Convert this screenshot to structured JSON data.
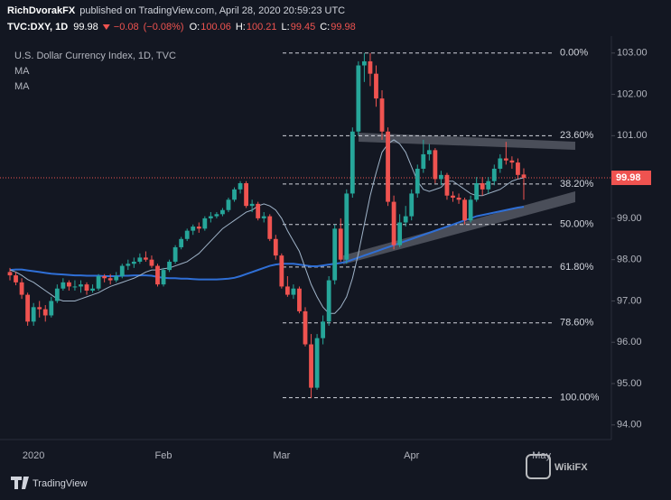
{
  "header": {
    "author": "RichDvorakFX",
    "published": "published on TradingView.com, April 28, 2020 20:59:23 UTC",
    "symbol": "TVC:DXY, 1D",
    "change": {
      "value": -0.08,
      "label": "−0.08"
    },
    "change_percent": {
      "value": -0.08,
      "label": "(−0.08%)"
    },
    "ohlc_prefixes": [
      "O:",
      "H:",
      "L:",
      "C:"
    ]
  },
  "footer": {
    "brand": "TradingView",
    "watermark": "WikiFX"
  },
  "chart_data": {
    "type": "candlestick",
    "categories": [
      null,
      null,
      null,
      null,
      "2020",
      null,
      null,
      null,
      null,
      null,
      null,
      null,
      null,
      null,
      null,
      null,
      null,
      null,
      null,
      null,
      null,
      null,
      null,
      null,
      null,
      null,
      "Feb",
      null,
      null,
      null,
      null,
      null,
      null,
      null,
      null,
      null,
      null,
      null,
      null,
      null,
      null,
      null,
      null,
      null,
      null,
      null,
      "Mar",
      null,
      null,
      null,
      null,
      null,
      null,
      null,
      null,
      null,
      null,
      null,
      null,
      null,
      null,
      null,
      null,
      null,
      null,
      null,
      null,
      null,
      "Apr",
      null,
      null,
      null,
      null,
      null,
      null,
      null,
      null,
      null,
      null,
      null,
      null,
      null,
      null,
      null,
      null,
      null,
      null,
      null,
      null,
      null,
      "May"
    ],
    "series": [
      {
        "name": "U.S. Dollar Currency Index, 1D, TVC",
        "type": "candlestick",
        "up_color": "#26a69a",
        "down_color": "#ef5350",
        "values": [
          [
            97.7,
            97.8,
            97.5,
            97.62
          ],
          [
            97.62,
            97.7,
            97.38,
            97.45
          ],
          [
            97.45,
            97.55,
            97.05,
            97.15
          ],
          [
            97.15,
            97.2,
            96.4,
            96.5
          ],
          [
            96.5,
            96.95,
            96.4,
            96.85
          ],
          [
            96.85,
            97.0,
            96.6,
            96.8
          ],
          [
            96.8,
            96.9,
            96.5,
            96.65
          ],
          [
            96.65,
            97.1,
            96.6,
            97.0
          ],
          [
            97.0,
            97.4,
            96.95,
            97.3
          ],
          [
            97.3,
            97.55,
            97.25,
            97.45
          ],
          [
            97.45,
            97.5,
            97.25,
            97.35
          ],
          [
            97.35,
            97.5,
            97.25,
            97.35
          ],
          [
            97.35,
            97.5,
            97.2,
            97.4
          ],
          [
            97.4,
            97.45,
            97.15,
            97.25
          ],
          [
            97.25,
            97.4,
            97.2,
            97.3
          ],
          [
            97.3,
            97.65,
            97.25,
            97.6
          ],
          [
            97.6,
            97.65,
            97.45,
            97.55
          ],
          [
            97.55,
            97.65,
            97.4,
            97.5
          ],
          [
            97.5,
            97.7,
            97.45,
            97.6
          ],
          [
            97.6,
            97.9,
            97.55,
            97.85
          ],
          [
            97.85,
            98.0,
            97.75,
            97.9
          ],
          [
            97.9,
            98.05,
            97.8,
            97.95
          ],
          [
            97.95,
            98.15,
            97.9,
            98.05
          ],
          [
            98.05,
            98.2,
            97.95,
            98.0
          ],
          [
            98.0,
            98.1,
            97.8,
            97.85
          ],
          [
            97.85,
            97.9,
            97.35,
            97.4
          ],
          [
            97.4,
            97.8,
            97.35,
            97.75
          ],
          [
            97.75,
            98.0,
            97.7,
            97.95
          ],
          [
            97.95,
            98.35,
            97.9,
            98.3
          ],
          [
            98.3,
            98.55,
            98.25,
            98.5
          ],
          [
            98.5,
            98.75,
            98.45,
            98.7
          ],
          [
            98.7,
            98.85,
            98.6,
            98.8
          ],
          [
            98.8,
            98.9,
            98.65,
            98.75
          ],
          [
            98.75,
            99.05,
            98.7,
            99.0
          ],
          [
            99.0,
            99.15,
            98.9,
            99.05
          ],
          [
            99.05,
            99.15,
            99.0,
            99.1
          ],
          [
            99.1,
            99.25,
            99.05,
            99.2
          ],
          [
            99.2,
            99.5,
            99.15,
            99.45
          ],
          [
            99.45,
            99.75,
            99.4,
            99.7
          ],
          [
            99.7,
            99.9,
            99.6,
            99.85
          ],
          [
            99.85,
            99.9,
            99.25,
            99.3
          ],
          [
            99.3,
            99.45,
            99.15,
            99.35
          ],
          [
            99.35,
            99.4,
            98.95,
            99.0
          ],
          [
            99.0,
            99.15,
            98.9,
            99.05
          ],
          [
            99.05,
            99.1,
            98.45,
            98.5
          ],
          [
            98.5,
            98.6,
            98.0,
            98.1
          ],
          [
            98.1,
            98.15,
            97.3,
            97.35
          ],
          [
            97.35,
            97.6,
            97.1,
            97.15
          ],
          [
            97.15,
            97.4,
            97.05,
            97.3
          ],
          [
            97.3,
            97.35,
            96.7,
            96.75
          ],
          [
            96.75,
            96.85,
            95.9,
            95.95
          ],
          [
            95.95,
            96.2,
            94.65,
            94.9
          ],
          [
            94.9,
            96.2,
            94.85,
            96.1
          ],
          [
            96.1,
            96.65,
            95.95,
            96.5
          ],
          [
            96.5,
            97.6,
            96.4,
            97.5
          ],
          [
            97.5,
            98.85,
            97.4,
            98.75
          ],
          [
            98.75,
            99.0,
            97.95,
            98.0
          ],
          [
            98.0,
            99.7,
            97.9,
            99.6
          ],
          [
            99.6,
            101.2,
            99.5,
            101.1
          ],
          [
            101.1,
            102.8,
            101.0,
            102.7
          ],
          [
            102.7,
            103.0,
            102.3,
            102.8
          ],
          [
            102.8,
            103.0,
            102.2,
            102.5
          ],
          [
            102.5,
            102.7,
            101.7,
            101.9
          ],
          [
            101.9,
            102.1,
            100.9,
            101.1
          ],
          [
            101.1,
            101.2,
            99.3,
            99.4
          ],
          [
            99.4,
            99.55,
            98.25,
            98.35
          ],
          [
            98.35,
            99.1,
            98.3,
            98.9
          ],
          [
            98.9,
            99.3,
            98.8,
            99.05
          ],
          [
            99.05,
            99.7,
            98.95,
            99.6
          ],
          [
            99.6,
            100.3,
            99.5,
            100.2
          ],
          [
            100.2,
            100.9,
            100.1,
            100.55
          ],
          [
            100.55,
            100.8,
            100.4,
            100.65
          ],
          [
            100.65,
            100.7,
            99.85,
            99.95
          ],
          [
            99.95,
            100.15,
            99.8,
            100.05
          ],
          [
            100.05,
            100.1,
            99.45,
            99.55
          ],
          [
            99.55,
            99.65,
            99.4,
            99.5
          ],
          [
            99.5,
            99.6,
            99.35,
            99.45
          ],
          [
            99.45,
            99.5,
            98.85,
            98.95
          ],
          [
            98.95,
            99.55,
            98.9,
            99.45
          ],
          [
            99.45,
            100.0,
            99.4,
            99.85
          ],
          [
            99.85,
            100.0,
            99.55,
            99.7
          ],
          [
            99.7,
            100.0,
            99.6,
            99.9
          ],
          [
            99.9,
            100.3,
            99.8,
            100.2
          ],
          [
            100.2,
            100.55,
            100.1,
            100.45
          ],
          [
            100.45,
            100.85,
            100.3,
            100.4
          ],
          [
            100.4,
            100.5,
            100.2,
            100.35
          ],
          [
            100.35,
            100.45,
            99.95,
            100.05
          ],
          [
            100.06,
            100.21,
            99.45,
            99.98
          ],
          null,
          null,
          null
        ]
      },
      {
        "name": "MA",
        "type": "line",
        "color": "#9fb3c8",
        "values": [
          97.75,
          97.7,
          97.62,
          97.52,
          97.45,
          97.35,
          97.25,
          97.15,
          97.05,
          97.0,
          97.0,
          97.0,
          97.05,
          97.1,
          97.15,
          97.2,
          97.28,
          97.35,
          97.4,
          97.45,
          97.5,
          97.55,
          97.62,
          97.7,
          97.75,
          97.75,
          97.78,
          97.8,
          97.85,
          97.9,
          97.95,
          98.05,
          98.15,
          98.3,
          98.45,
          98.6,
          98.75,
          98.85,
          98.95,
          99.05,
          99.15,
          99.2,
          99.3,
          99.35,
          99.3,
          99.2,
          99.0,
          98.7,
          98.45,
          98.2,
          97.8,
          97.4,
          97.1,
          96.85,
          96.7,
          96.7,
          96.85,
          97.1,
          97.55,
          98.15,
          98.85,
          99.55,
          100.1,
          100.6,
          100.8,
          100.9,
          100.8,
          100.6,
          100.25,
          99.9,
          99.7,
          99.65,
          99.7,
          99.75,
          99.9,
          99.9,
          99.8,
          99.7,
          99.6,
          99.55,
          99.55,
          99.6,
          99.65,
          99.7,
          99.8,
          99.9,
          99.95,
          99.98,
          null,
          null,
          null
        ]
      },
      {
        "name": "MA",
        "type": "line",
        "color": "#2f6fd6",
        "values": [
          97.75,
          97.76,
          97.76,
          97.74,
          97.72,
          97.7,
          97.68,
          97.66,
          97.65,
          97.64,
          97.63,
          97.62,
          97.62,
          97.61,
          97.61,
          97.61,
          97.6,
          97.6,
          97.6,
          97.61,
          97.61,
          97.62,
          97.62,
          97.62,
          97.61,
          97.58,
          97.56,
          97.55,
          97.55,
          97.54,
          97.54,
          97.53,
          97.52,
          97.52,
          97.52,
          97.52,
          97.53,
          97.54,
          97.56,
          97.6,
          97.65,
          97.7,
          97.75,
          97.8,
          97.85,
          97.88,
          97.9,
          97.9,
          97.9,
          97.88,
          97.86,
          97.84,
          97.84,
          97.86,
          97.88,
          97.9,
          97.92,
          97.95,
          98.0,
          98.05,
          98.1,
          98.15,
          98.2,
          98.25,
          98.3,
          98.35,
          98.4,
          98.45,
          98.5,
          98.55,
          98.6,
          98.65,
          98.7,
          98.75,
          98.8,
          98.85,
          98.9,
          98.95,
          99.0,
          99.05,
          99.08,
          99.11,
          99.14,
          99.17,
          99.2,
          99.23,
          99.26,
          99.28,
          null,
          null,
          null
        ]
      }
    ],
    "last_price": 99.98,
    "last_price_color": "#ef5350",
    "fib_levels": [
      {
        "value": 0,
        "label": "0.00%",
        "price": 103.0
      },
      {
        "value": 23.6,
        "label": "23.60%",
        "price": 101.0
      },
      {
        "value": 38.2,
        "label": "38.20%",
        "price": 99.83
      },
      {
        "value": 50,
        "label": "50.00%",
        "price": 98.85
      },
      {
        "value": 61.8,
        "label": "61.80%",
        "price": 97.82
      },
      {
        "value": 78.6,
        "label": "78.60%",
        "price": 96.47
      },
      {
        "value": 100,
        "label": "100.00%",
        "price": 94.66
      }
    ],
    "ylim": [
      93.69,
      103.41
    ],
    "yticks": [
      {
        "value": 94,
        "label": "94.00"
      },
      {
        "value": 95,
        "label": "95.00"
      },
      {
        "value": 96,
        "label": "96.00"
      },
      {
        "value": 97,
        "label": "97.00"
      },
      {
        "value": 98,
        "label": "98.00"
      },
      {
        "value": 99,
        "label": "99.00"
      },
      {
        "value": 100,
        "label": "100.00"
      },
      {
        "value": 101,
        "label": "101.00"
      },
      {
        "value": 102,
        "label": "102.00"
      },
      {
        "value": 103,
        "label": "103.00"
      }
    ]
  }
}
